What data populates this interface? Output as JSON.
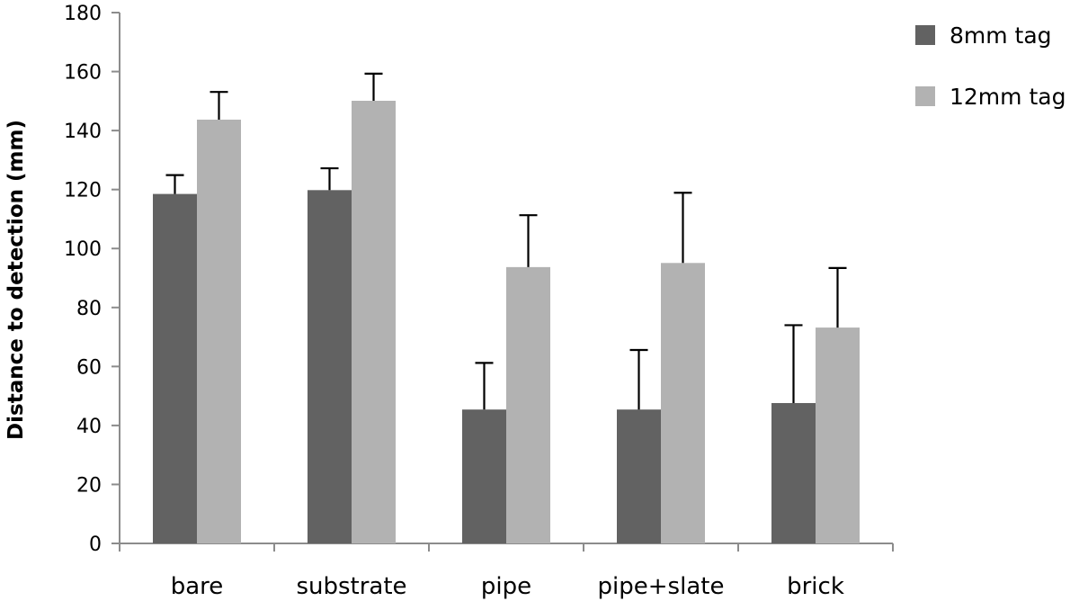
{
  "chart_data": {
    "type": "bar",
    "title": "",
    "xlabel": "",
    "ylabel": "Distance to detection (mm)",
    "ylim": [
      0,
      180
    ],
    "yticks": [
      0,
      20,
      40,
      60,
      80,
      100,
      120,
      140,
      160,
      180
    ],
    "grid": false,
    "legend_position": "top-right",
    "categories": [
      "bare",
      "substrate",
      "pipe",
      "pipe+slate",
      "brick"
    ],
    "series": [
      {
        "name": "8mm tag",
        "color": "#626262",
        "values": [
          118.5,
          119.8,
          45.4,
          45.4,
          47.6
        ],
        "errors": [
          6.4,
          7.4,
          15.8,
          20.2,
          26.4
        ]
      },
      {
        "name": "12mm tag",
        "color": "#b2b2b2",
        "values": [
          143.7,
          150.1,
          93.7,
          95.1,
          73.2
        ],
        "errors": [
          9.4,
          9.2,
          17.6,
          23.8,
          20.2
        ]
      }
    ]
  }
}
